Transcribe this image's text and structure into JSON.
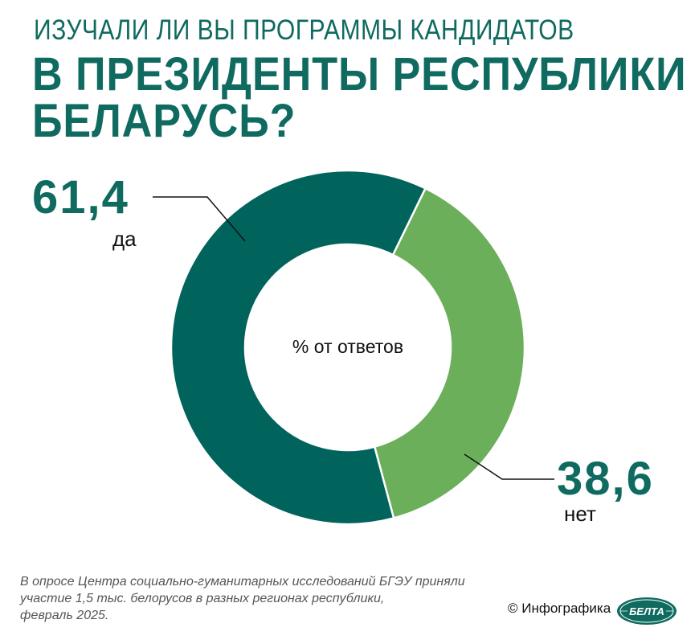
{
  "chart_data": {
    "type": "pie",
    "title_line1": "ИЗУЧАЛИ ЛИ ВЫ ПРОГРАММЫ КАНДИДАТОВ",
    "title_line2": "В ПРЕЗИДЕНТЫ РЕСПУБЛИКИ",
    "title_line3": "БЕЛАРУСЬ?",
    "center_label": "% от ответов",
    "slices": [
      {
        "label": "нет",
        "value": 38.6,
        "value_text": "38,6",
        "color": "#6caf5b"
      },
      {
        "label": "да",
        "value": 61.4,
        "value_text": "61,4",
        "color": "#00645c"
      }
    ]
  },
  "footer": {
    "note_lines": [
      "В опросе Центра социально-гуманитарных исследований БГЭУ приняли",
      "участие 1,5 тыс. белорусов в разных регионах республики,",
      "февраль 2025."
    ],
    "credit": "© Инфографика",
    "logo_text": "БЕЛТА"
  },
  "colors": {
    "title": "#0f6a60",
    "dark": "#00645c",
    "light": "#6caf5b"
  }
}
